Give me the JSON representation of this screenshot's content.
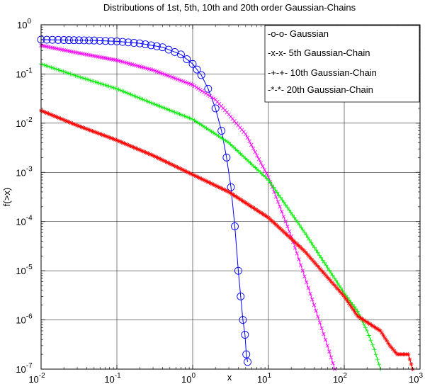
{
  "chart_data": {
    "type": "line",
    "title": "Distributions of 1st, 5th, 10th and 20th order Gaussian-Chains",
    "xlabel": "x",
    "ylabel": "f(>x)",
    "xscale": "log",
    "yscale": "log",
    "xlim": [
      0.01,
      1000
    ],
    "ylim": [
      1e-07,
      1
    ],
    "grid": true,
    "legend_position": "top-right",
    "x_ticks": [
      {
        "value": 0.01,
        "base": "10",
        "exp": "-2"
      },
      {
        "value": 0.1,
        "base": "10",
        "exp": "-1"
      },
      {
        "value": 1,
        "base": "10",
        "exp": "0"
      },
      {
        "value": 10,
        "base": "10",
        "exp": "1"
      },
      {
        "value": 100,
        "base": "10",
        "exp": "2"
      },
      {
        "value": 1000,
        "base": "10",
        "exp": "3"
      }
    ],
    "y_ticks": [
      {
        "value": 1e-07,
        "base": "10",
        "exp": "-7"
      },
      {
        "value": 1e-06,
        "base": "10",
        "exp": "-6"
      },
      {
        "value": 1e-05,
        "base": "10",
        "exp": "-5"
      },
      {
        "value": 0.0001,
        "base": "10",
        "exp": "-4"
      },
      {
        "value": 0.001,
        "base": "10",
        "exp": "-3"
      },
      {
        "value": 0.01,
        "base": "10",
        "exp": "-2"
      },
      {
        "value": 0.1,
        "base": "10",
        "exp": "-1"
      },
      {
        "value": 1,
        "base": "10",
        "exp": "0"
      }
    ],
    "series": [
      {
        "name": "-o-o- Gaussian",
        "color": "#0000ff",
        "marker": "circle",
        "x": [
          0.01,
          0.02,
          0.05,
          0.1,
          0.2,
          0.4,
          0.7,
          1.0,
          1.3,
          1.6,
          2.0,
          2.4,
          2.8,
          3.2,
          3.6,
          4.0,
          4.3,
          4.6,
          4.9,
          5.1,
          5.3
        ],
        "y": [
          0.5,
          0.49,
          0.48,
          0.46,
          0.42,
          0.35,
          0.25,
          0.16,
          0.095,
          0.05,
          0.02,
          0.007,
          0.002,
          0.0005,
          8e-05,
          1e-05,
          3e-06,
          1e-06,
          5e-07,
          2e-07,
          1.4e-07
        ]
      },
      {
        "name": "-x-x- 5th Gaussian-Chain",
        "color": "#ff00ff",
        "marker": "x",
        "x": [
          0.01,
          0.03,
          0.1,
          0.3,
          1,
          2,
          3,
          5,
          10,
          20,
          40,
          60,
          75
        ],
        "y": [
          0.38,
          0.27,
          0.19,
          0.12,
          0.06,
          0.03,
          0.015,
          0.006,
          0.0008,
          5e-05,
          2e-06,
          3e-07,
          1e-07
        ]
      },
      {
        "name": "-+-+- 10th Gaussian-Chain",
        "color": "#00ee00",
        "marker": "plus",
        "x": [
          0.01,
          0.03,
          0.1,
          0.3,
          1,
          3,
          10,
          30,
          100,
          150,
          200,
          250,
          300
        ],
        "y": [
          0.16,
          0.09,
          0.05,
          0.025,
          0.012,
          0.004,
          0.0007,
          6e-05,
          3.5e-06,
          1.5e-06,
          6e-07,
          2.5e-07,
          1e-07
        ]
      },
      {
        "name": "-*-*- 20th Gaussian-Chain",
        "color": "#ff0000",
        "marker": "star",
        "x": [
          0.01,
          0.03,
          0.1,
          0.3,
          1,
          3,
          10,
          30,
          100,
          150,
          200,
          300,
          400,
          500,
          600,
          700,
          800
        ],
        "y": [
          0.018,
          0.009,
          0.0045,
          0.0022,
          0.0009,
          0.0004,
          0.00012,
          2.5e-05,
          3e-06,
          1.2e-06,
          9e-07,
          6e-07,
          3e-07,
          2e-07,
          2e-07,
          2e-07,
          1e-07
        ]
      }
    ]
  }
}
